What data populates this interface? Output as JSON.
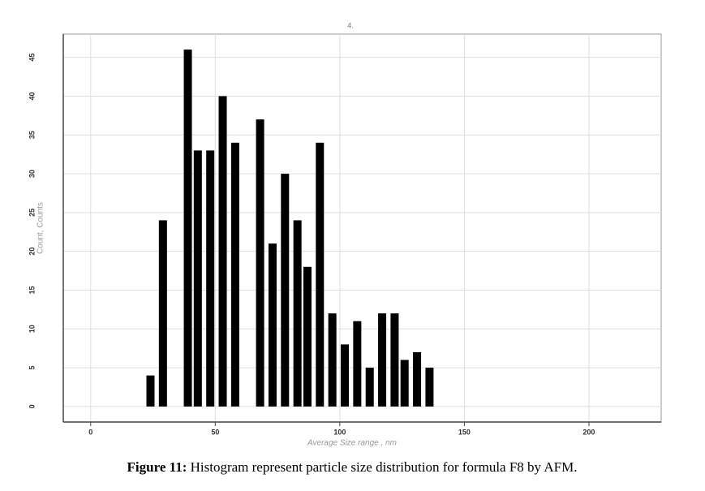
{
  "chart_data": {
    "type": "bar",
    "title": "4.",
    "x_label": "Average Size range , nm",
    "y_label": "Count, Counts",
    "x": [
      24,
      29,
      39,
      43,
      48,
      53,
      58,
      68,
      73,
      78,
      83,
      87,
      92,
      97,
      102,
      107,
      112,
      117,
      122,
      126,
      131,
      136
    ],
    "values": [
      4,
      24,
      46,
      33,
      33,
      40,
      34,
      37,
      21,
      30,
      24,
      18,
      34,
      12,
      8,
      11,
      5,
      12,
      12,
      6,
      7,
      5
    ],
    "color": "#000000",
    "xlim": [
      -11,
      229
    ],
    "xticks": [
      0,
      50,
      100,
      150,
      200
    ],
    "ylim": [
      -2,
      48
    ],
    "yticks": [
      0,
      5,
      10,
      15,
      20,
      25,
      30,
      35,
      40,
      45
    ],
    "grid": true
  },
  "caption": {
    "label": "Figure 11:",
    "text": "Histogram represent particle size distribution for formula F8 by AFM."
  }
}
